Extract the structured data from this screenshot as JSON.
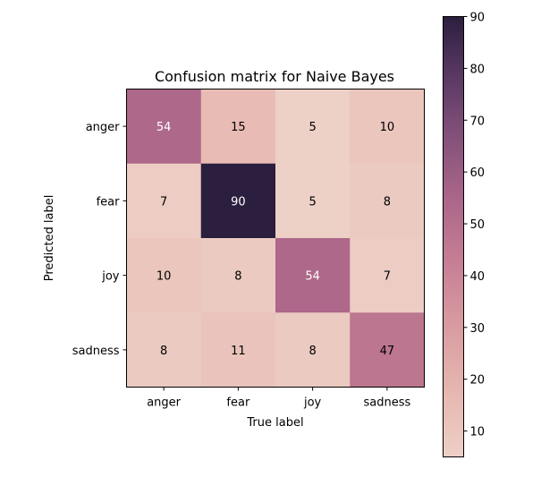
{
  "chart_data": {
    "type": "heatmap",
    "title": "Confusion matrix for Naive Bayes",
    "xlabel": "True label",
    "ylabel": "Predicted label",
    "x_categories": [
      "anger",
      "fear",
      "joy",
      "sadness"
    ],
    "y_categories": [
      "anger",
      "fear",
      "joy",
      "sadness"
    ],
    "values": [
      [
        54,
        15,
        5,
        10
      ],
      [
        7,
        90,
        5,
        8
      ],
      [
        10,
        8,
        54,
        7
      ],
      [
        8,
        11,
        8,
        47
      ]
    ],
    "colorbar": {
      "range": [
        5,
        90
      ],
      "ticks": [
        "10",
        "20",
        "30",
        "40",
        "50",
        "60",
        "70",
        "80",
        "90"
      ],
      "palette": "light pink (low) to dark purple (high)",
      "low_color": "#EDD0C6",
      "high_color": "#2B1E3E"
    },
    "legend": "none",
    "grid": false
  }
}
